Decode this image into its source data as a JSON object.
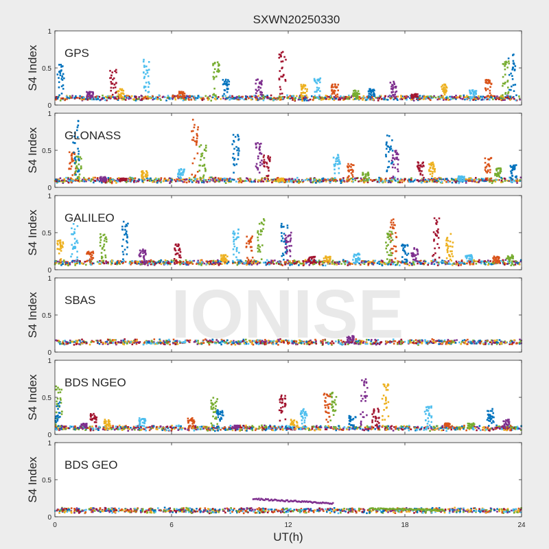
{
  "figure": {
    "title": "SXWN20250330",
    "xlabel": "UT(h)",
    "watermark": "IONISE"
  },
  "colors": {
    "series": [
      "#0072BD",
      "#D95319",
      "#EDB120",
      "#7E2F8E",
      "#77AC30",
      "#4DBEEE",
      "#A2142F"
    ],
    "axes_background": "#ffffff",
    "figure_background": "#ededed"
  },
  "chart_data": [
    {
      "type": "scatter",
      "title": "GPS",
      "ylabel": "S4 Index",
      "xlim": [
        0,
        24
      ],
      "ylim": [
        0,
        1
      ],
      "xticks": [
        0,
        6,
        12,
        18,
        24
      ],
      "yticks": [
        0,
        0.5,
        1
      ],
      "grid": false,
      "baseline": 0.08,
      "peaks": [
        [
          0.3,
          0.55
        ],
        [
          1.8,
          0.18
        ],
        [
          3.0,
          0.48
        ],
        [
          3.4,
          0.22
        ],
        [
          4.7,
          0.62
        ],
        [
          6.5,
          0.18
        ],
        [
          8.3,
          0.58
        ],
        [
          8.8,
          0.35
        ],
        [
          10.5,
          0.35
        ],
        [
          11.7,
          0.72
        ],
        [
          12.8,
          0.28
        ],
        [
          13.5,
          0.36
        ],
        [
          14.4,
          0.28
        ],
        [
          15.5,
          0.2
        ],
        [
          16.3,
          0.22
        ],
        [
          17.4,
          0.32
        ],
        [
          18.5,
          0.15
        ],
        [
          20.0,
          0.28
        ],
        [
          21.5,
          0.2
        ],
        [
          22.3,
          0.35
        ],
        [
          23.2,
          0.6
        ],
        [
          23.5,
          0.72
        ]
      ]
    },
    {
      "type": "scatter",
      "title": "GLONASS",
      "ylabel": "S4 Index",
      "xlim": [
        0,
        24
      ],
      "ylim": [
        0,
        1
      ],
      "xticks": [
        0,
        6,
        12,
        18,
        24
      ],
      "yticks": [
        0,
        0.5,
        1
      ],
      "grid": false,
      "baseline": 0.08,
      "peaks": [
        [
          0.9,
          0.48
        ],
        [
          1.2,
          0.42
        ],
        [
          1.1,
          0.95
        ],
        [
          2.5,
          0.14
        ],
        [
          3.5,
          0.12
        ],
        [
          4.6,
          0.22
        ],
        [
          6.5,
          0.25
        ],
        [
          7.2,
          0.95
        ],
        [
          7.6,
          0.58
        ],
        [
          9.3,
          0.72
        ],
        [
          10.5,
          0.6
        ],
        [
          10.9,
          0.45
        ],
        [
          11.6,
          0.12
        ],
        [
          14.5,
          0.45
        ],
        [
          15.2,
          0.32
        ],
        [
          16.0,
          0.2
        ],
        [
          17.2,
          0.75
        ],
        [
          17.5,
          0.5
        ],
        [
          18.8,
          0.35
        ],
        [
          19.4,
          0.34
        ],
        [
          20.9,
          0.15
        ],
        [
          22.3,
          0.4
        ],
        [
          22.8,
          0.26
        ],
        [
          23.6,
          0.3
        ]
      ]
    },
    {
      "type": "scatter",
      "title": "GALILEO",
      "ylabel": "S4 Index",
      "xlim": [
        0,
        24
      ],
      "ylim": [
        0,
        1
      ],
      "xticks": [
        0,
        6,
        12,
        18,
        24
      ],
      "yticks": [
        0,
        0.5,
        1
      ],
      "grid": false,
      "baseline": 0.08,
      "peaks": [
        [
          0.3,
          0.4
        ],
        [
          1.0,
          0.62
        ],
        [
          1.8,
          0.25
        ],
        [
          2.5,
          0.48
        ],
        [
          3.6,
          0.65
        ],
        [
          4.5,
          0.28
        ],
        [
          6.3,
          0.35
        ],
        [
          8.7,
          0.2
        ],
        [
          9.3,
          0.55
        ],
        [
          10.0,
          0.45
        ],
        [
          10.6,
          0.7
        ],
        [
          11.8,
          0.62
        ],
        [
          12.0,
          0.5
        ],
        [
          13.2,
          0.18
        ],
        [
          14.0,
          0.18
        ],
        [
          15.5,
          0.22
        ],
        [
          17.4,
          0.68
        ],
        [
          17.2,
          0.55
        ],
        [
          18.0,
          0.35
        ],
        [
          18.5,
          0.3
        ],
        [
          19.6,
          0.7
        ],
        [
          20.3,
          0.52
        ],
        [
          21.3,
          0.2
        ],
        [
          22.7,
          0.18
        ],
        [
          23.4,
          0.2
        ]
      ]
    },
    {
      "type": "scatter",
      "title": "SBAS",
      "ylabel": "S4 Index",
      "xlim": [
        0,
        24
      ],
      "ylim": [
        0,
        1
      ],
      "xticks": [
        0,
        6,
        12,
        18,
        24
      ],
      "yticks": [
        0,
        0.5,
        1
      ],
      "grid": false,
      "baseline": 0.12,
      "peaks": [
        [
          15.2,
          0.22
        ]
      ]
    },
    {
      "type": "scatter",
      "title": "BDS NGEO",
      "ylabel": "S4 Index",
      "xlim": [
        0,
        24
      ],
      "ylim": [
        0,
        1
      ],
      "xticks": [
        0,
        6,
        12,
        18,
        24
      ],
      "yticks": [
        0,
        0.5,
        1
      ],
      "grid": false,
      "baseline": 0.07,
      "peaks": [
        [
          0.2,
          0.65
        ],
        [
          0.1,
          0.45
        ],
        [
          1.5,
          0.15
        ],
        [
          2.0,
          0.28
        ],
        [
          2.7,
          0.2
        ],
        [
          4.5,
          0.22
        ],
        [
          7.0,
          0.22
        ],
        [
          8.2,
          0.5
        ],
        [
          8.5,
          0.35
        ],
        [
          9.3,
          0.12
        ],
        [
          11.7,
          0.55
        ],
        [
          12.3,
          0.2
        ],
        [
          12.8,
          0.35
        ],
        [
          14.0,
          0.55
        ],
        [
          14.3,
          0.58
        ],
        [
          15.3,
          0.25
        ],
        [
          15.9,
          0.75
        ],
        [
          16.5,
          0.35
        ],
        [
          17.0,
          0.68
        ],
        [
          19.2,
          0.38
        ],
        [
          20.2,
          0.15
        ],
        [
          21.4,
          0.15
        ],
        [
          22.4,
          0.38
        ],
        [
          23.2,
          0.2
        ]
      ]
    },
    {
      "type": "scatter",
      "title": "BDS GEO",
      "ylabel": "S4 Index",
      "xlim": [
        0,
        24
      ],
      "ylim": [
        0,
        1
      ],
      "xticks": [
        0,
        6,
        12,
        18,
        24
      ],
      "yticks": [
        0,
        0.5,
        1
      ],
      "grid": false,
      "baseline": 0.07,
      "peaks": [],
      "tracks": [
        {
          "x0": 10.2,
          "x1": 14.3,
          "y0": 0.24,
          "y1": 0.18,
          "color_index": 3
        },
        {
          "x0": 16.2,
          "x1": 20.0,
          "y0": 0.11,
          "y1": 0.09,
          "color_index": 4
        }
      ]
    }
  ]
}
